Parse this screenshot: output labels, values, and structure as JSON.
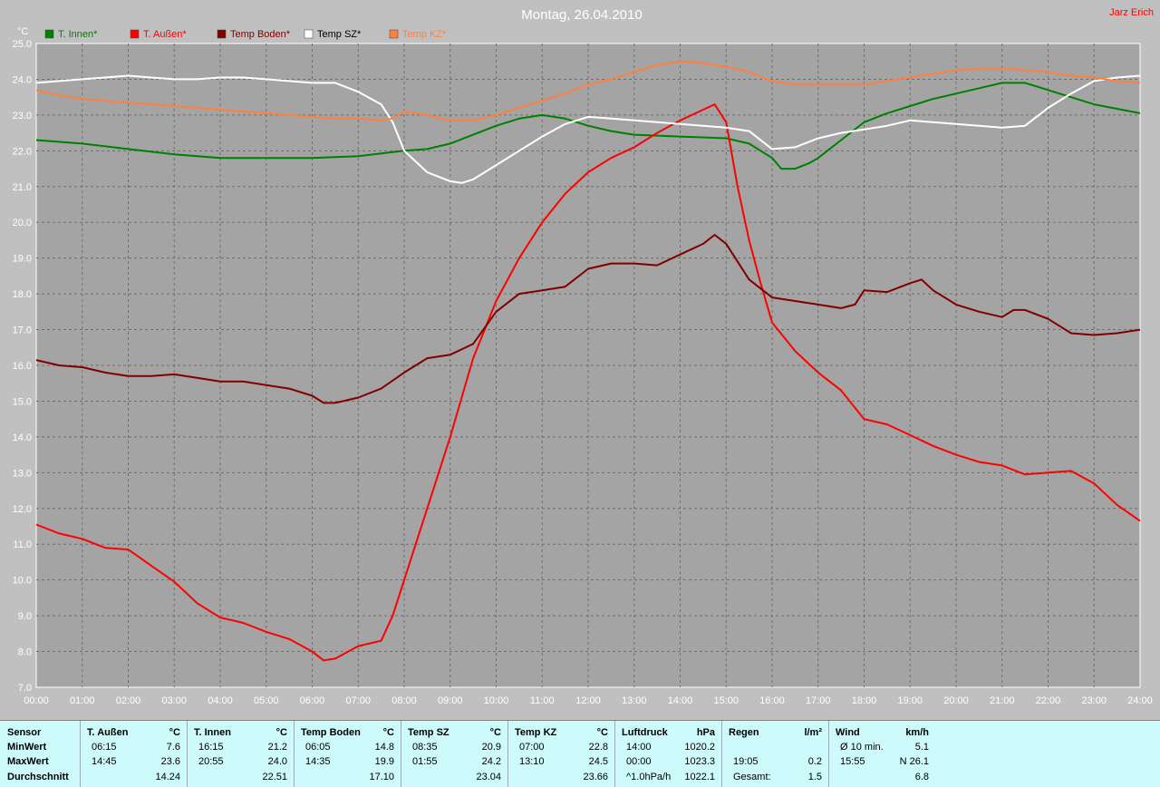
{
  "title": "Montag, 26.04.2010",
  "author": "Jarz Erich",
  "chart_data": {
    "type": "line",
    "ylabel": "°C",
    "ylim": [
      7.0,
      25.0
    ],
    "yticks": [
      "7.0",
      "8.0",
      "9.0",
      "10.0",
      "11.0",
      "12.0",
      "13.0",
      "14.0",
      "15.0",
      "16.0",
      "17.0",
      "18.0",
      "19.0",
      "20.0",
      "21.0",
      "22.0",
      "23.0",
      "24.0",
      "25.0"
    ],
    "xlim": [
      0,
      24
    ],
    "xticks": [
      "00:00",
      "01:00",
      "02:00",
      "03:00",
      "04:00",
      "05:00",
      "06:00",
      "07:00",
      "08:00",
      "09:00",
      "10:00",
      "11:00",
      "12:00",
      "13:00",
      "14:00",
      "15:00",
      "16:00",
      "17:00",
      "18:00",
      "19:00",
      "20:00",
      "21:00",
      "22:00",
      "23:00",
      "24:00"
    ],
    "grid": true,
    "legend_position": "top-left",
    "series": [
      {
        "name": "T. Innen*",
        "color": "#008000",
        "x": [
          0,
          1,
          2,
          3,
          4,
          5,
          6,
          7,
          8,
          8.5,
          9,
          9.5,
          10,
          10.5,
          11,
          11.5,
          12,
          12.5,
          13,
          14,
          15,
          15.5,
          16,
          16.2,
          16.5,
          16.8,
          17,
          17.5,
          18,
          18.5,
          19,
          19.5,
          20,
          20.5,
          21,
          21.5,
          22,
          22.5,
          23,
          24
        ],
        "y": [
          22.3,
          22.2,
          22.05,
          21.9,
          21.8,
          21.8,
          21.8,
          21.85,
          22.0,
          22.05,
          22.2,
          22.45,
          22.7,
          22.9,
          23.0,
          22.9,
          22.7,
          22.55,
          22.45,
          22.4,
          22.35,
          22.2,
          21.8,
          21.5,
          21.5,
          21.65,
          21.8,
          22.3,
          22.8,
          23.05,
          23.25,
          23.45,
          23.6,
          23.75,
          23.9,
          23.9,
          23.7,
          23.5,
          23.3,
          23.05
        ]
      },
      {
        "name": "T. Außen*",
        "color": "#ff0000",
        "x": [
          0,
          0.5,
          1,
          1.5,
          2,
          2.5,
          3,
          3.5,
          4,
          4.5,
          5,
          5.5,
          6,
          6.25,
          6.5,
          7,
          7.5,
          7.75,
          8,
          8.5,
          9,
          9.5,
          10,
          10.5,
          11,
          11.5,
          12,
          12.5,
          13,
          13.5,
          14,
          14.5,
          14.75,
          15,
          15.25,
          15.5,
          15.75,
          16,
          16.5,
          17,
          17.5,
          18,
          18.5,
          19,
          19.5,
          20,
          20.5,
          21,
          21.5,
          22,
          22.5,
          23,
          23.5,
          24
        ],
        "y": [
          11.55,
          11.3,
          11.15,
          10.9,
          10.85,
          10.4,
          9.95,
          9.35,
          8.95,
          8.8,
          8.55,
          8.35,
          8.0,
          7.75,
          7.8,
          8.15,
          8.3,
          9.0,
          10.0,
          12.0,
          14.0,
          16.2,
          17.8,
          19.0,
          20.0,
          20.8,
          21.4,
          21.8,
          22.1,
          22.5,
          22.85,
          23.15,
          23.3,
          22.8,
          21.0,
          19.5,
          18.3,
          17.2,
          16.4,
          15.8,
          15.3,
          14.5,
          14.35,
          14.05,
          13.75,
          13.5,
          13.3,
          13.2,
          12.95,
          13.0,
          13.05,
          12.7,
          12.1,
          11.65
        ]
      },
      {
        "name": "Temp Boden*",
        "color": "#800000",
        "x": [
          0,
          0.5,
          1,
          1.5,
          2,
          2.5,
          3,
          3.5,
          4,
          4.5,
          5,
          5.5,
          6,
          6.25,
          6.5,
          7,
          7.5,
          8,
          8.5,
          9,
          9.5,
          10,
          10.5,
          11,
          11.5,
          12,
          12.5,
          13,
          13.5,
          14,
          14.5,
          14.75,
          15,
          15.5,
          16,
          16.5,
          17,
          17.5,
          17.8,
          18,
          18.5,
          19,
          19.25,
          19.5,
          20,
          20.5,
          21,
          21.25,
          21.5,
          22,
          22.5,
          23,
          23.5,
          24
        ],
        "y": [
          16.15,
          16.0,
          15.95,
          15.8,
          15.7,
          15.7,
          15.75,
          15.65,
          15.55,
          15.55,
          15.45,
          15.35,
          15.15,
          14.95,
          14.95,
          15.1,
          15.35,
          15.8,
          16.2,
          16.3,
          16.6,
          17.5,
          18.0,
          18.1,
          18.2,
          18.7,
          18.85,
          18.85,
          18.8,
          19.1,
          19.4,
          19.65,
          19.4,
          18.4,
          17.9,
          17.8,
          17.7,
          17.6,
          17.7,
          18.1,
          18.05,
          18.3,
          18.4,
          18.1,
          17.7,
          17.5,
          17.35,
          17.55,
          17.55,
          17.3,
          16.9,
          16.85,
          16.9,
          17.0
        ]
      },
      {
        "name": "Temp SZ*",
        "color": "#ffffff",
        "x": [
          0,
          0.5,
          1,
          1.5,
          2,
          2.5,
          3,
          3.5,
          4,
          4.5,
          5,
          5.5,
          6,
          6.5,
          7,
          7.5,
          7.75,
          8,
          8.5,
          9,
          9.25,
          9.5,
          10,
          10.5,
          11,
          11.5,
          12,
          12.5,
          13,
          13.5,
          14,
          14.5,
          15,
          15.5,
          16,
          16.5,
          17,
          17.5,
          18,
          18.5,
          19,
          19.5,
          20,
          20.5,
          21,
          21.5,
          22,
          22.5,
          23,
          23.5,
          24
        ],
        "y": [
          23.9,
          23.95,
          24.0,
          24.05,
          24.1,
          24.05,
          24.0,
          24.0,
          24.05,
          24.05,
          24.0,
          23.95,
          23.9,
          23.9,
          23.65,
          23.3,
          22.8,
          22.0,
          21.4,
          21.15,
          21.1,
          21.2,
          21.6,
          22.0,
          22.4,
          22.75,
          22.95,
          22.9,
          22.85,
          22.8,
          22.75,
          22.7,
          22.65,
          22.55,
          22.05,
          22.1,
          22.35,
          22.5,
          22.6,
          22.7,
          22.85,
          22.8,
          22.75,
          22.7,
          22.65,
          22.7,
          23.2,
          23.6,
          23.95,
          24.05,
          24.1
        ]
      },
      {
        "name": "Temp KZ*",
        "color": "#ff8040",
        "x": [
          0,
          0.5,
          1,
          1.5,
          2,
          2.5,
          3,
          3.5,
          4,
          4.5,
          5,
          5.5,
          6,
          6.5,
          7,
          7.5,
          7.75,
          8,
          8.5,
          9,
          9.5,
          10,
          10.5,
          11,
          11.5,
          12,
          12.5,
          13,
          13.5,
          14,
          14.5,
          15,
          15.5,
          16,
          16.5,
          17,
          17.5,
          18,
          18.5,
          19,
          19.5,
          20,
          20.5,
          21,
          21.5,
          22,
          22.5,
          23,
          23.5,
          24
        ],
        "y": [
          23.7,
          23.55,
          23.45,
          23.4,
          23.35,
          23.3,
          23.25,
          23.2,
          23.15,
          23.1,
          23.05,
          23.0,
          22.95,
          22.9,
          22.9,
          22.85,
          22.9,
          23.1,
          23.0,
          22.85,
          22.85,
          23.0,
          23.2,
          23.4,
          23.6,
          23.85,
          24.0,
          24.2,
          24.4,
          24.5,
          24.45,
          24.35,
          24.2,
          23.95,
          23.85,
          23.85,
          23.85,
          23.85,
          23.95,
          24.05,
          24.15,
          24.25,
          24.3,
          24.3,
          24.25,
          24.2,
          24.1,
          24.05,
          23.95,
          23.9
        ]
      }
    ]
  },
  "stats": {
    "row_labels": [
      "Sensor",
      "MinWert",
      "MaxWert",
      "Durchschnitt"
    ],
    "columns": [
      {
        "name": "T. Außen",
        "unit": "°C",
        "rows": [
          [
            "06:15",
            "7.6"
          ],
          [
            "14:45",
            "23.6"
          ],
          [
            "",
            "14.24"
          ]
        ]
      },
      {
        "name": "T. Innen",
        "unit": "°C",
        "rows": [
          [
            "16:15",
            "21.2"
          ],
          [
            "20:55",
            "24.0"
          ],
          [
            "",
            "22.51"
          ]
        ]
      },
      {
        "name": "Temp Boden",
        "unit": "°C",
        "rows": [
          [
            "06:05",
            "14.8"
          ],
          [
            "14:35",
            "19.9"
          ],
          [
            "",
            "17.10"
          ]
        ]
      },
      {
        "name": "Temp SZ",
        "unit": "°C",
        "rows": [
          [
            "08:35",
            "20.9"
          ],
          [
            "01:55",
            "24.2"
          ],
          [
            "",
            "23.04"
          ]
        ]
      },
      {
        "name": "Temp KZ",
        "unit": "°C",
        "rows": [
          [
            "07:00",
            "22.8"
          ],
          [
            "13:10",
            "24.5"
          ],
          [
            "",
            "23.66"
          ]
        ]
      },
      {
        "name": "Luftdruck",
        "unit": "hPa",
        "rows": [
          [
            "14:00",
            "1020.2"
          ],
          [
            "00:00",
            "1023.3"
          ],
          [
            "^1.0hPa/h",
            "1022.1"
          ]
        ]
      },
      {
        "name": "Regen",
        "unit": "l/m²",
        "rows": [
          [
            "",
            ""
          ],
          [
            "19:05",
            "0.2"
          ],
          [
            "Gesamt:",
            "1.5"
          ]
        ]
      },
      {
        "name": "Wind",
        "unit": "km/h",
        "rows": [
          [
            "Ø 10 min.",
            "5.1"
          ],
          [
            "15:55",
            "N 26.1"
          ],
          [
            "",
            "6.8"
          ]
        ]
      }
    ]
  }
}
